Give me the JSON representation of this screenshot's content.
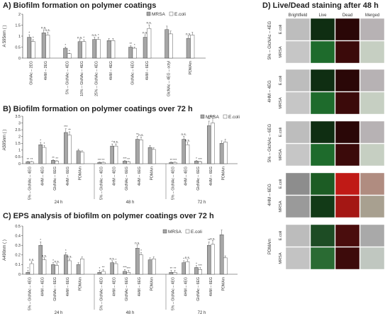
{
  "colors": {
    "mrsa": "#a6a6a6",
    "ecoli": "#ffffff",
    "axis": "#333333"
  },
  "chart_data": [
    {
      "id": "A",
      "type": "bar",
      "title": "A) Biofilm formation on polymer coatings",
      "ylabel": "A 595nm ( )",
      "ylim": [
        0,
        2
      ],
      "yticks": [
        "0",
        "0.5",
        "1",
        "1.5",
        "2"
      ],
      "legend": [
        "MRSA",
        "E.coli"
      ],
      "categories": [
        "GlcNAc – 2EG",
        "4HM – 2EG",
        "5% – GlcNAc – 4EG",
        "10% – GlcNAc – 4EG",
        "25% – GlcNAc – 4EG",
        "4HM – 4EG",
        "GlcNAc – 6EG",
        "4HM – 6EG",
        "GlcNAc – 4EG – octyl",
        "PDMAm"
      ],
      "series": [
        {
          "name": "MRSA",
          "values": [
            0.95,
            1.15,
            0.45,
            0.75,
            0.85,
            0.8,
            0.5,
            0.95,
            1.3,
            0.9
          ]
        },
        {
          "name": "E.coli",
          "values": [
            0.75,
            1.05,
            0.2,
            0.75,
            0.85,
            0.8,
            0.45,
            1.35,
            1.1,
            1.05
          ]
        }
      ],
      "annotations": [
        [
          "*",
          "*"
        ],
        [
          "n.s.",
          "n.s."
        ],
        [
          "*",
          "*"
        ],
        [
          "n.s.",
          "*"
        ],
        [
          "n.s.",
          "*"
        ],
        [
          "",
          ""
        ],
        [
          "**",
          "*"
        ],
        [
          "n.s.",
          "n.s."
        ],
        [
          "",
          ""
        ],
        [
          "n.s.",
          ""
        ]
      ]
    },
    {
      "id": "B",
      "type": "bar",
      "title": "B) Biofilm formation on polymer coatings over 72 h",
      "ylabel": "A595nm ( )",
      "ylim": [
        0,
        3.5
      ],
      "yticks": [
        "0",
        "0.5",
        "1",
        "1.5",
        "2",
        "2.5",
        "3",
        "3.5"
      ],
      "legend": [
        "MRSA",
        "E.coli"
      ],
      "groups": [
        {
          "label": "24 h",
          "categories": [
            "5% – GlcNAc – 4EG",
            "4HM – 4EG",
            "GlcNAc – 6EG",
            "4HM – 6EG",
            "PDMAm"
          ],
          "mrsa": [
            0.15,
            1.4,
            0.25,
            2.3,
            0.95
          ],
          "ecoli": [
            0.15,
            1.2,
            0.2,
            2.1,
            0.85
          ],
          "sig": [
            [
              "**",
              "**"
            ],
            [
              "*",
              "*"
            ],
            [
              "**",
              "**"
            ],
            [
              "***",
              "**"
            ],
            [
              "",
              ""
            ]
          ]
        },
        {
          "label": "48 h",
          "categories": [
            "5% – GlcNAc – 4EG",
            "4HM – 4EG",
            "GlcNAc – 6EG",
            "4HM – 6EG",
            "PDMAm"
          ],
          "mrsa": [
            0.1,
            1.3,
            0.2,
            1.8,
            1.2
          ],
          "ecoli": [
            0.1,
            1.3,
            0.15,
            1.75,
            1.05
          ],
          "sig": [
            [
              "***",
              "**"
            ],
            [
              "*",
              "n.s."
            ],
            [
              "***",
              "**"
            ],
            [
              "**",
              "n.s."
            ],
            [
              "",
              ""
            ]
          ]
        },
        {
          "label": "72 h",
          "categories": [
            "5% – GlcNAc – 4EG",
            "4HM – 4EG",
            "GlcNAc – 6EG",
            "4HM – 6EG",
            "PDMAm"
          ],
          "mrsa": [
            0.1,
            1.8,
            0.2,
            2.8,
            1.5
          ],
          "ecoli": [
            0.1,
            1.4,
            0.15,
            3.0,
            1.6
          ],
          "sig": [
            [
              "**",
              "***"
            ],
            [
              "n.s.",
              "n.s."
            ],
            [
              "*",
              "***"
            ],
            [
              "**",
              "n.s."
            ],
            [
              "",
              ""
            ]
          ]
        }
      ]
    },
    {
      "id": "C",
      "type": "bar",
      "title": "C) EPS analysis of biofilm on polymer coatings over 72 h",
      "ylabel": "A490nm ( )",
      "ylim": [
        0,
        0.5
      ],
      "yticks": [
        "0",
        "0.1",
        "0.2",
        "0.3",
        "0.4",
        "0.5"
      ],
      "legend": [
        "MRSA",
        "E.coli"
      ],
      "groups": [
        {
          "label": "24 h",
          "categories": [
            "5% – GlcNAc – 4EG",
            "4HM – 4EG",
            "GlcNAc – 6EG",
            "4HM – 6EG",
            "PDMAm"
          ],
          "mrsa": [
            0.02,
            0.3,
            0.1,
            0.2,
            0.1
          ],
          "ecoli": [
            0.11,
            0.15,
            0.09,
            0.14,
            0.16
          ],
          "sig": [
            [
              "*",
              "n.s."
            ],
            [
              "*",
              "n.s."
            ],
            [
              "*",
              "n.s."
            ],
            [
              "*",
              "n.s."
            ],
            [
              "",
              ""
            ]
          ]
        },
        {
          "label": "48 h",
          "categories": [
            "5% – GlcNAc – 4EG",
            "4HM – 4EG",
            "GlcNAc – 6EG",
            "4HM – 6EG",
            "PDMAm"
          ],
          "mrsa": [
            0.02,
            0.12,
            0.03,
            0.27,
            0.15
          ],
          "ecoli": [
            0.03,
            0.11,
            0.02,
            0.2,
            0.16
          ],
          "sig": [
            [
              "*",
              "**"
            ],
            [
              "n.s.",
              "*"
            ],
            [
              "***",
              "***"
            ],
            [
              "n.s.",
              "*"
            ],
            [
              "",
              ""
            ]
          ]
        },
        {
          "label": "72 h",
          "categories": [
            "5% – GlcNAc – 4EG",
            "4HM – 4EG",
            "GlcNAc – 6EG",
            "4HM – 6EG",
            "PDMAm"
          ],
          "mrsa": [
            0.02,
            0.12,
            0.07,
            0.3,
            0.41
          ],
          "ecoli": [
            0.02,
            0.13,
            0.05,
            0.31,
            0.17
          ],
          "sig": [
            [
              "**",
              "**"
            ],
            [
              "*",
              "n.s."
            ],
            [
              "*",
              "***"
            ],
            [
              "**",
              "n.s."
            ],
            [
              "",
              ""
            ]
          ]
        }
      ]
    }
  ],
  "microscopy": {
    "title": "D) Live/Dead staining after 48 h",
    "columns": [
      "Brightfield",
      "Live",
      "Dead",
      "Merged"
    ],
    "strains": [
      "E.coli",
      "MRSA"
    ],
    "groups": [
      "5% – GlcNAc – 4EG",
      "4HM – 4EG",
      "5% – GlcNAc – 6EG",
      "4HM – 6EG",
      "PDMAm"
    ]
  }
}
